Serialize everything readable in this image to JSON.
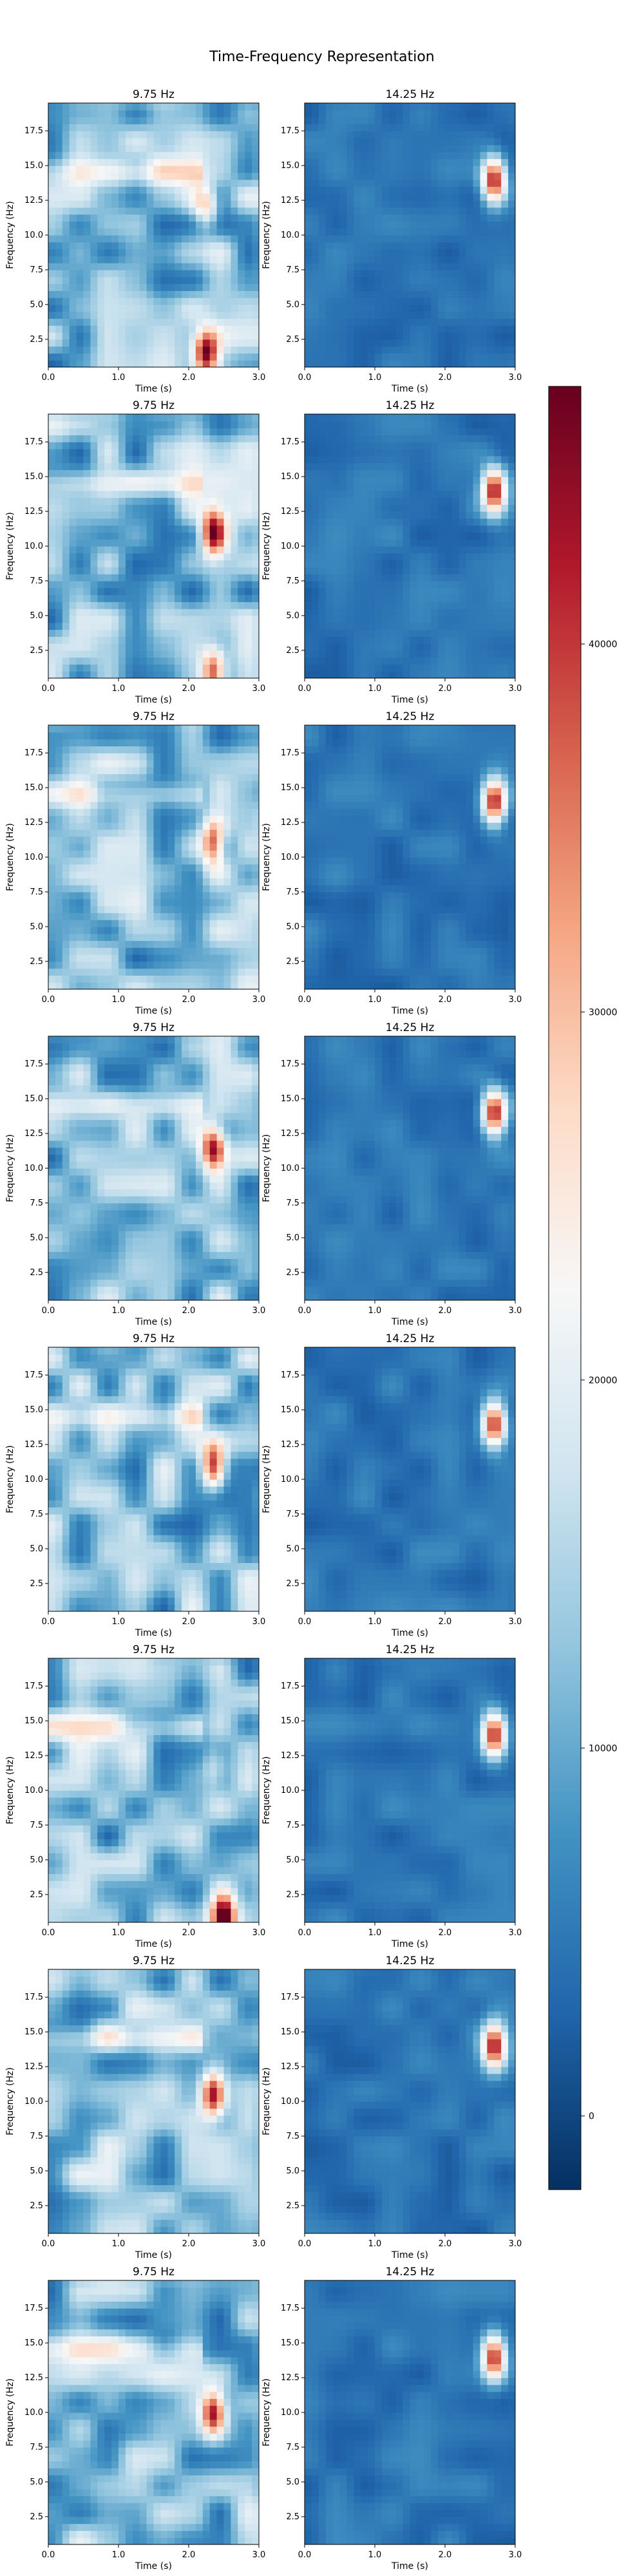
{
  "figure": {
    "title": "Time-Frequency Representation"
  },
  "colorbar": {
    "colormap": "RdBu_r",
    "min": -2000,
    "max": 47000,
    "ticks": [
      0,
      10000,
      20000,
      30000,
      40000
    ]
  },
  "chart_data": [
    {
      "type": "heatmap",
      "row": 1,
      "title": "9.75 Hz",
      "xlabel": "Time (s)",
      "ylabel": "Frequency (Hz)",
      "xlim": [
        0,
        3
      ],
      "ylim": [
        0.5,
        19.5
      ],
      "xticks": [
        0.0,
        1.0,
        2.0,
        3.0
      ],
      "yticks": [
        2.5,
        5.0,
        7.5,
        10.0,
        12.5,
        15.0,
        17.5
      ],
      "hotspots": [
        {
          "t": 2.25,
          "f": 12.0,
          "value": 28000
        },
        {
          "t": 2.25,
          "f": 1.5,
          "value": 45000
        }
      ]
    },
    {
      "type": "heatmap",
      "row": 1,
      "title": "14.25 Hz",
      "xlabel": "Time (s)",
      "ylabel": "Frequency (Hz)",
      "xlim": [
        0,
        3
      ],
      "ylim": [
        0.5,
        19.5
      ],
      "xticks": [
        0.0,
        1.0,
        2.0,
        3.0
      ],
      "yticks": [
        2.5,
        5.0,
        7.5,
        10.0,
        12.5,
        15.0,
        17.5
      ],
      "hotspots": [
        {
          "t": 2.7,
          "f": 14.0,
          "value": 43000
        }
      ]
    },
    {
      "type": "heatmap",
      "row": 2,
      "title": "9.75 Hz",
      "xlabel": "Time (s)",
      "ylabel": "Frequency (Hz)",
      "xlim": [
        0,
        3
      ],
      "ylim": [
        0.5,
        19.5
      ],
      "xticks": [
        0.0,
        1.0,
        2.0,
        3.0
      ],
      "yticks": [
        2.5,
        5.0,
        7.5,
        10.0,
        12.5,
        15.0,
        17.5
      ],
      "hotspots": [
        {
          "t": 2.35,
          "f": 11.0,
          "value": 43000
        },
        {
          "t": 2.35,
          "f": 1.0,
          "value": 40000
        }
      ]
    },
    {
      "type": "heatmap",
      "row": 2,
      "title": "14.25 Hz",
      "xlabel": "Time (s)",
      "ylabel": "Frequency (Hz)",
      "xlim": [
        0,
        3
      ],
      "ylim": [
        0.5,
        19.5
      ],
      "xticks": [
        0.0,
        1.0,
        2.0,
        3.0
      ],
      "yticks": [
        2.5,
        5.0,
        7.5,
        10.0,
        12.5,
        15.0,
        17.5
      ],
      "hotspots": [
        {
          "t": 2.7,
          "f": 14.0,
          "value": 42000
        }
      ]
    },
    {
      "type": "heatmap",
      "row": 3,
      "title": "9.75 Hz",
      "xlabel": "Time (s)",
      "ylabel": "Frequency (Hz)",
      "xlim": [
        0,
        3
      ],
      "ylim": [
        0.5,
        19.5
      ],
      "xticks": [
        0.0,
        1.0,
        2.0,
        3.0
      ],
      "yticks": [
        2.5,
        5.0,
        7.5,
        10.0,
        12.5,
        15.0,
        17.5
      ],
      "hotspots": [
        {
          "t": 2.35,
          "f": 11.0,
          "value": 42000
        }
      ]
    },
    {
      "type": "heatmap",
      "row": 3,
      "title": "14.25 Hz",
      "xlabel": "Time (s)",
      "ylabel": "Frequency (Hz)",
      "xlim": [
        0,
        3
      ],
      "ylim": [
        0.5,
        19.5
      ],
      "xticks": [
        0.0,
        1.0,
        2.0,
        3.0
      ],
      "yticks": [
        2.5,
        5.0,
        7.5,
        10.0,
        12.5,
        15.0,
        17.5
      ],
      "hotspots": [
        {
          "t": 2.7,
          "f": 14.0,
          "value": 42000
        }
      ]
    },
    {
      "type": "heatmap",
      "row": 4,
      "title": "9.75 Hz",
      "xlabel": "Time (s)",
      "ylabel": "Frequency (Hz)",
      "xlim": [
        0,
        3
      ],
      "ylim": [
        0.5,
        19.5
      ],
      "xticks": [
        0.0,
        1.0,
        2.0,
        3.0
      ],
      "yticks": [
        2.5,
        5.0,
        7.5,
        10.0,
        12.5,
        15.0,
        17.5
      ],
      "hotspots": [
        {
          "t": 2.35,
          "f": 11.5,
          "value": 43000
        }
      ]
    },
    {
      "type": "heatmap",
      "row": 4,
      "title": "14.25 Hz",
      "xlabel": "Time (s)",
      "ylabel": "Frequency (Hz)",
      "xlim": [
        0,
        3
      ],
      "ylim": [
        0.5,
        19.5
      ],
      "xticks": [
        0.0,
        1.0,
        2.0,
        3.0
      ],
      "yticks": [
        2.5,
        5.0,
        7.5,
        10.0,
        12.5,
        15.0,
        17.5
      ],
      "hotspots": [
        {
          "t": 2.7,
          "f": 14.0,
          "value": 42000
        }
      ]
    },
    {
      "type": "heatmap",
      "row": 5,
      "title": "9.75 Hz",
      "xlabel": "Time (s)",
      "ylabel": "Frequency (Hz)",
      "xlim": [
        0,
        3
      ],
      "ylim": [
        0.5,
        19.5
      ],
      "xticks": [
        0.0,
        1.0,
        2.0,
        3.0
      ],
      "yticks": [
        2.5,
        5.0,
        7.5,
        10.0,
        12.5,
        15.0,
        17.5
      ],
      "hotspots": [
        {
          "t": 2.35,
          "f": 11.0,
          "value": 45000
        }
      ]
    },
    {
      "type": "heatmap",
      "row": 5,
      "title": "14.25 Hz",
      "xlabel": "Time (s)",
      "ylabel": "Frequency (Hz)",
      "xlim": [
        0,
        3
      ],
      "ylim": [
        0.5,
        19.5
      ],
      "xticks": [
        0.0,
        1.0,
        2.0,
        3.0
      ],
      "yticks": [
        2.5,
        5.0,
        7.5,
        10.0,
        12.5,
        15.0,
        17.5
      ],
      "hotspots": [
        {
          "t": 2.7,
          "f": 14.0,
          "value": 42000
        }
      ]
    },
    {
      "type": "heatmap",
      "row": 6,
      "title": "9.75 Hz",
      "xlabel": "Time (s)",
      "ylabel": "Frequency (Hz)",
      "xlim": [
        0,
        3
      ],
      "ylim": [
        0.5,
        19.5
      ],
      "xticks": [
        0.0,
        1.0,
        2.0,
        3.0
      ],
      "yticks": [
        2.5,
        5.0,
        7.5,
        10.0,
        12.5,
        15.0,
        17.5
      ],
      "hotspots": [
        {
          "t": 2.35,
          "f": 11.5,
          "value": 20000
        },
        {
          "t": 2.5,
          "f": 1.0,
          "value": 45000
        }
      ]
    },
    {
      "type": "heatmap",
      "row": 6,
      "title": "14.25 Hz",
      "xlabel": "Time (s)",
      "ylabel": "Frequency (Hz)",
      "xlim": [
        0,
        3
      ],
      "ylim": [
        0.5,
        19.5
      ],
      "xticks": [
        0.0,
        1.0,
        2.0,
        3.0
      ],
      "yticks": [
        2.5,
        5.0,
        7.5,
        10.0,
        12.5,
        15.0,
        17.5
      ],
      "hotspots": [
        {
          "t": 2.7,
          "f": 14.0,
          "value": 42000
        }
      ]
    },
    {
      "type": "heatmap",
      "row": 7,
      "title": "9.75 Hz",
      "xlabel": "Time (s)",
      "ylabel": "Frequency (Hz)",
      "xlim": [
        0,
        3
      ],
      "ylim": [
        0.5,
        19.5
      ],
      "xticks": [
        0.0,
        1.0,
        2.0,
        3.0
      ],
      "yticks": [
        2.5,
        5.0,
        7.5,
        10.0,
        12.5,
        15.0,
        17.5
      ],
      "hotspots": [
        {
          "t": 2.35,
          "f": 10.5,
          "value": 45000
        }
      ]
    },
    {
      "type": "heatmap",
      "row": 7,
      "title": "14.25 Hz",
      "xlabel": "Time (s)",
      "ylabel": "Frequency (Hz)",
      "xlim": [
        0,
        3
      ],
      "ylim": [
        0.5,
        19.5
      ],
      "xticks": [
        0.0,
        1.0,
        2.0,
        3.0
      ],
      "yticks": [
        2.5,
        5.0,
        7.5,
        10.0,
        12.5,
        15.0,
        17.5
      ],
      "hotspots": [
        {
          "t": 2.7,
          "f": 14.0,
          "value": 42000
        }
      ]
    },
    {
      "type": "heatmap",
      "row": 8,
      "title": "9.75 Hz",
      "xlabel": "Time (s)",
      "ylabel": "Frequency (Hz)",
      "xlim": [
        0,
        3
      ],
      "ylim": [
        0.5,
        19.5
      ],
      "xticks": [
        0.0,
        1.0,
        2.0,
        3.0
      ],
      "yticks": [
        2.5,
        5.0,
        7.5,
        10.0,
        12.5,
        15.0,
        17.5
      ],
      "hotspots": [
        {
          "t": 2.35,
          "f": 10.0,
          "value": 45000
        }
      ]
    },
    {
      "type": "heatmap",
      "row": 8,
      "title": "14.25 Hz",
      "xlabel": "Time (s)",
      "ylabel": "Frequency (Hz)",
      "xlim": [
        0,
        3
      ],
      "ylim": [
        0.5,
        19.5
      ],
      "xticks": [
        0.0,
        1.0,
        2.0,
        3.0
      ],
      "yticks": [
        2.5,
        5.0,
        7.5,
        10.0,
        12.5,
        15.0,
        17.5
      ],
      "hotspots": [
        {
          "t": 2.7,
          "f": 14.0,
          "value": 42000
        }
      ]
    }
  ]
}
